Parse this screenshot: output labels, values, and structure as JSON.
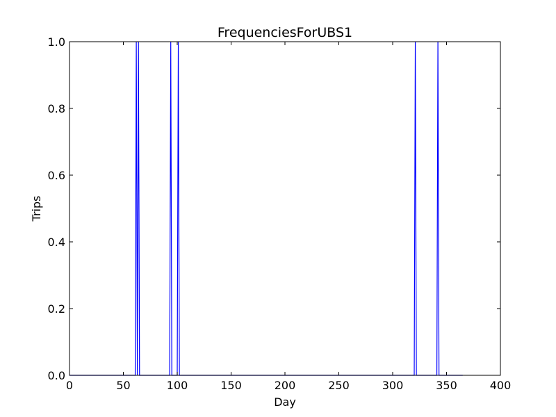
{
  "chart_data": {
    "type": "line",
    "title": "FrequenciesForUBS1",
    "xlabel": "Day",
    "ylabel": "Trips",
    "xlim": [
      0,
      400
    ],
    "ylim": [
      0,
      1.0
    ],
    "xticks": [
      "0",
      "50",
      "100",
      "150",
      "200",
      "250",
      "300",
      "350",
      "400"
    ],
    "yticks": [
      "0.0",
      "0.2",
      "0.4",
      "0.6",
      "0.8",
      "1.0"
    ],
    "grid": false,
    "series": [
      {
        "color": "#0000ff",
        "x": [
          0,
          61,
          62,
          63,
          64,
          65,
          93,
          94,
          95,
          100,
          101,
          102,
          320,
          321,
          322,
          341,
          342,
          343,
          365
        ],
        "y": [
          0,
          0,
          1,
          0,
          1,
          0,
          0,
          1,
          0,
          0,
          1,
          0,
          0,
          1,
          0,
          0,
          1,
          0,
          0
        ]
      }
    ]
  }
}
